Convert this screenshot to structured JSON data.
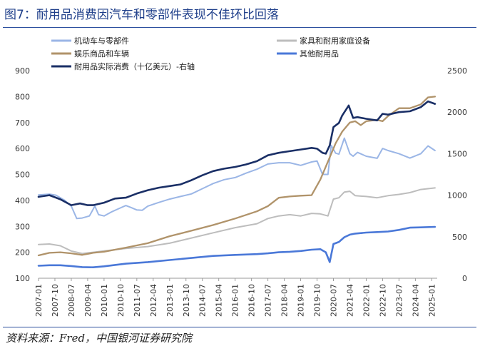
{
  "header": {
    "title": "图7：耐用品消费因汽车和零部件表现不佳环比回落"
  },
  "footer": {
    "source": "资料来源：Fred，中国银河证券研究院"
  },
  "chart_data": {
    "type": "line",
    "left_axis": {
      "ticks": [
        100,
        200,
        300,
        400,
        500,
        600,
        700,
        800,
        900
      ],
      "ylim": [
        100,
        900
      ]
    },
    "right_axis": {
      "ticks": [
        0,
        500,
        1000,
        1500,
        2000,
        2500
      ],
      "ylim": [
        0,
        2500
      ]
    },
    "x_tick_labels": [
      "2007-01",
      "2007-10",
      "2008-07",
      "2009-04",
      "2010-01",
      "2010-10",
      "2011-07",
      "2012-04",
      "2013-01",
      "2013-10",
      "2014-07",
      "2015-04",
      "2016-01",
      "2016-10",
      "2017-07",
      "2018-04",
      "2019-01",
      "2019-10",
      "2020-07",
      "2021-04",
      "2022-01",
      "2022-10",
      "2023-07",
      "2024-04",
      "2025-01"
    ],
    "x_range": [
      2007.0,
      2025.25
    ],
    "legend": {
      "placement": "top",
      "columns": 2
    },
    "series": [
      {
        "name": "机动车与零部件",
        "color": "#9bb6e6",
        "axis": "left",
        "width": 2,
        "x": [
          2007.0,
          2007.5,
          2007.8,
          2008.2,
          2008.5,
          2008.75,
          2009.0,
          2009.33,
          2009.58,
          2009.75,
          2010.0,
          2010.33,
          2010.67,
          2011.0,
          2011.25,
          2011.5,
          2011.75,
          2012.0,
          2012.5,
          2013.0,
          2013.5,
          2014.0,
          2014.5,
          2015.0,
          2015.5,
          2016.0,
          2016.5,
          2017.0,
          2017.5,
          2018.0,
          2018.5,
          2019.0,
          2019.5,
          2019.75,
          2020.0,
          2020.25,
          2020.4,
          2020.6,
          2020.75,
          2021.0,
          2021.25,
          2021.4,
          2021.6,
          2022.0,
          2022.5,
          2022.75,
          2023.0,
          2023.5,
          2024.0,
          2024.5,
          2024.83,
          2025.15
        ],
        "values": [
          421,
          424,
          420,
          400,
          378,
          330,
          332,
          340,
          378,
          345,
          340,
          355,
          368,
          380,
          372,
          363,
          362,
          378,
          392,
          405,
          415,
          425,
          445,
          465,
          480,
          488,
          505,
          520,
          540,
          545,
          545,
          535,
          548,
          552,
          500,
          500,
          612,
          582,
          578,
          640,
          580,
          570,
          585,
          570,
          562,
          600,
          592,
          580,
          563,
          580,
          610,
          592
        ]
      },
      {
        "name": "家具和耐用家庭设备",
        "color": "#bdbdbd",
        "axis": "left",
        "width": 2,
        "x": [
          2007.0,
          2007.5,
          2008.0,
          2008.5,
          2009.0,
          2009.5,
          2010.0,
          2011.0,
          2012.0,
          2013.0,
          2014.0,
          2015.0,
          2016.0,
          2017.0,
          2017.5,
          2018.0,
          2018.5,
          2019.0,
          2019.5,
          2019.9,
          2020.25,
          2020.5,
          2020.75,
          2021.0,
          2021.25,
          2021.5,
          2022.0,
          2022.5,
          2023.0,
          2023.5,
          2024.0,
          2024.5,
          2025.15
        ],
        "values": [
          230,
          232,
          225,
          205,
          195,
          200,
          205,
          215,
          222,
          235,
          255,
          275,
          295,
          310,
          330,
          340,
          345,
          340,
          350,
          348,
          340,
          405,
          410,
          432,
          435,
          418,
          415,
          410,
          418,
          423,
          430,
          442,
          448
        ]
      },
      {
        "name": "娱乐商品和车辆",
        "color": "#b0936a",
        "axis": "left",
        "width": 2.3,
        "x": [
          2007.0,
          2007.5,
          2008.0,
          2008.5,
          2009.0,
          2009.5,
          2010.0,
          2011.0,
          2012.0,
          2013.0,
          2014.0,
          2015.0,
          2016.0,
          2017.0,
          2017.5,
          2018.0,
          2018.5,
          2019.0,
          2019.5,
          2019.9,
          2020.3,
          2020.6,
          2020.9,
          2021.25,
          2021.5,
          2021.75,
          2022.0,
          2022.5,
          2022.75,
          2023.0,
          2023.5,
          2024.0,
          2024.5,
          2024.83,
          2025.15
        ],
        "values": [
          188,
          198,
          200,
          196,
          190,
          198,
          202,
          218,
          235,
          262,
          283,
          305,
          330,
          358,
          378,
          410,
          415,
          418,
          420,
          480,
          560,
          620,
          665,
          700,
          705,
          690,
          705,
          710,
          705,
          725,
          755,
          755,
          770,
          797,
          800
        ]
      },
      {
        "name": "其他耐用品",
        "color": "#4a78d8",
        "axis": "left",
        "width": 2.6,
        "x": [
          2007.0,
          2007.5,
          2008.0,
          2008.5,
          2009.0,
          2009.5,
          2010.0,
          2011.0,
          2012.0,
          2013.0,
          2014.0,
          2015.0,
          2016.0,
          2017.0,
          2017.5,
          2018.0,
          2018.5,
          2019.0,
          2019.5,
          2019.9,
          2020.15,
          2020.33,
          2020.5,
          2020.75,
          2021.0,
          2021.25,
          2021.5,
          2022.0,
          2022.5,
          2023.0,
          2023.5,
          2024.0,
          2024.5,
          2025.15
        ],
        "values": [
          148,
          150,
          150,
          147,
          143,
          142,
          146,
          156,
          162,
          170,
          178,
          186,
          190,
          193,
          196,
          200,
          202,
          205,
          210,
          212,
          200,
          162,
          232,
          240,
          258,
          268,
          272,
          276,
          278,
          280,
          286,
          295,
          296,
          298
        ]
      },
      {
        "name": "耐用品实际消费（十亿美元）-右轴",
        "color": "#1a2f66",
        "axis": "right",
        "width": 2.6,
        "x": [
          2007.0,
          2007.5,
          2008.0,
          2008.5,
          2008.9,
          2009.25,
          2009.5,
          2010.0,
          2010.5,
          2011.0,
          2011.5,
          2012.0,
          2012.5,
          2013.0,
          2013.5,
          2014.0,
          2014.5,
          2015.0,
          2015.5,
          2016.0,
          2016.5,
          2017.0,
          2017.5,
          2018.0,
          2018.5,
          2019.0,
          2019.5,
          2019.75,
          2020.0,
          2020.15,
          2020.33,
          2020.5,
          2020.75,
          2020.9,
          2021.2,
          2021.4,
          2021.6,
          2022.0,
          2022.5,
          2022.75,
          2023.0,
          2023.5,
          2024.0,
          2024.5,
          2024.83,
          2025.15
        ],
        "values": [
          980,
          1000,
          950,
          880,
          900,
          880,
          880,
          910,
          960,
          970,
          1020,
          1060,
          1090,
          1110,
          1130,
          1180,
          1240,
          1290,
          1320,
          1340,
          1370,
          1410,
          1480,
          1510,
          1530,
          1550,
          1570,
          1560,
          1510,
          1500,
          1600,
          1820,
          1870,
          1960,
          2080,
          1930,
          1940,
          1920,
          1900,
          1980,
          1970,
          2000,
          2010,
          2060,
          2130,
          2100
        ]
      }
    ]
  }
}
